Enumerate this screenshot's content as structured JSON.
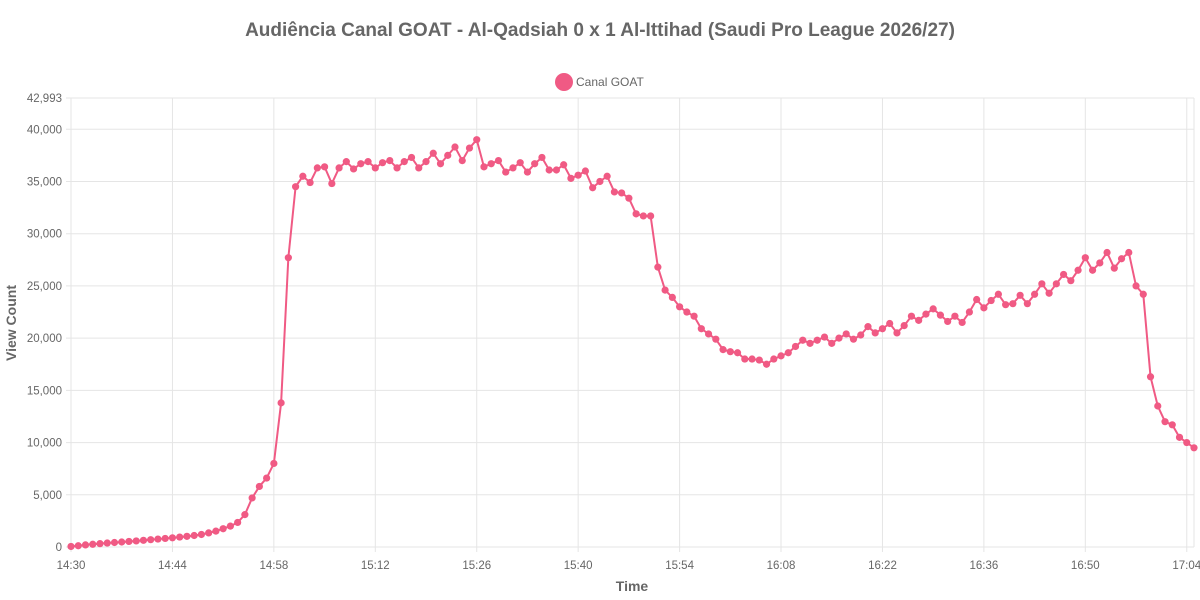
{
  "chart_data": {
    "type": "line",
    "title": "Audiência Canal GOAT - Al-Qadsiah 0 x 1 Al-Ittihad (Saudi Pro League 2026/27)",
    "xlabel": "Time",
    "ylabel": "View Count",
    "ylim": [
      0,
      42993
    ],
    "y_ticks": [
      "0",
      "5,000",
      "10,000",
      "15,000",
      "20,000",
      "25,000",
      "30,000",
      "35,000",
      "40,000",
      "42,993"
    ],
    "x_ticks": [
      "14:30",
      "14:44",
      "14:58",
      "15:12",
      "15:26",
      "15:40",
      "15:54",
      "16:08",
      "16:22",
      "16:36",
      "16:50",
      "17:04"
    ],
    "x_start": "14:30",
    "x_end": "17:05",
    "grid": true,
    "legend_position": "top-center",
    "series": [
      {
        "name": "Canal GOAT",
        "color": "#f05a84",
        "x": [
          "14:30",
          "14:31",
          "14:32",
          "14:33",
          "14:34",
          "14:35",
          "14:36",
          "14:37",
          "14:38",
          "14:39",
          "14:40",
          "14:41",
          "14:42",
          "14:43",
          "14:44",
          "14:45",
          "14:46",
          "14:47",
          "14:48",
          "14:49",
          "14:50",
          "14:51",
          "14:52",
          "14:53",
          "14:54",
          "14:55",
          "14:56",
          "14:57",
          "14:58",
          "14:59",
          "15:00",
          "15:01",
          "15:02",
          "15:03",
          "15:04",
          "15:05",
          "15:06",
          "15:07",
          "15:08",
          "15:09",
          "15:10",
          "15:11",
          "15:12",
          "15:13",
          "15:14",
          "15:15",
          "15:16",
          "15:17",
          "15:18",
          "15:19",
          "15:20",
          "15:21",
          "15:22",
          "15:23",
          "15:24",
          "15:25",
          "15:26",
          "15:27",
          "15:28",
          "15:29",
          "15:30",
          "15:31",
          "15:32",
          "15:33",
          "15:34",
          "15:35",
          "15:36",
          "15:37",
          "15:38",
          "15:39",
          "15:40",
          "15:41",
          "15:42",
          "15:43",
          "15:44",
          "15:45",
          "15:46",
          "15:47",
          "15:48",
          "15:49",
          "15:50",
          "15:51",
          "15:52",
          "15:53",
          "15:54",
          "15:55",
          "15:56",
          "15:57",
          "15:58",
          "15:59",
          "16:00",
          "16:01",
          "16:02",
          "16:03",
          "16:04",
          "16:05",
          "16:06",
          "16:07",
          "16:08",
          "16:09",
          "16:10",
          "16:11",
          "16:12",
          "16:13",
          "16:14",
          "16:15",
          "16:16",
          "16:17",
          "16:18",
          "16:19",
          "16:20",
          "16:21",
          "16:22",
          "16:23",
          "16:24",
          "16:25",
          "16:26",
          "16:27",
          "16:28",
          "16:29",
          "16:30",
          "16:31",
          "16:32",
          "16:33",
          "16:34",
          "16:35",
          "16:36",
          "16:37",
          "16:38",
          "16:39",
          "16:40",
          "16:41",
          "16:42",
          "16:43",
          "16:44",
          "16:45",
          "16:46",
          "16:47",
          "16:48",
          "16:49",
          "16:50",
          "16:51",
          "16:52",
          "16:53",
          "16:54",
          "16:55",
          "16:56",
          "16:57",
          "16:58",
          "16:59",
          "17:00",
          "17:01",
          "17:02",
          "17:03",
          "17:04",
          "17:05"
        ],
        "values": [
          50,
          120,
          200,
          260,
          320,
          380,
          430,
          480,
          530,
          580,
          640,
          700,
          760,
          820,
          880,
          950,
          1020,
          1100,
          1200,
          1350,
          1520,
          1750,
          2000,
          2350,
          3100,
          4700,
          5800,
          6600,
          8000,
          13800,
          27700,
          34500,
          35500,
          34900,
          36300,
          36400,
          34800,
          36300,
          36900,
          36200,
          36700,
          36900,
          36300,
          36800,
          37000,
          36300,
          36900,
          37300,
          36300,
          36900,
          37700,
          36700,
          37500,
          38300,
          37000,
          38200,
          39000,
          36400,
          36700,
          37000,
          35900,
          36300,
          36800,
          35900,
          36700,
          37300,
          36100,
          36100,
          36600,
          35300,
          35600,
          36000,
          34400,
          35000,
          35500,
          34000,
          33900,
          33400,
          31900,
          31700,
          31700,
          26800,
          24600,
          23900,
          23000,
          22500,
          22100,
          20900,
          20400,
          19900,
          18900,
          18700,
          18600,
          18000,
          18000,
          17900,
          17500,
          18000,
          18300,
          18600,
          19200,
          19800,
          19500,
          19800,
          20100,
          19500,
          20000,
          20400,
          19900,
          20300,
          21100,
          20500,
          20900,
          21400,
          20500,
          21200,
          22100,
          21700,
          22300,
          22800,
          22200,
          21600,
          22100,
          21500,
          22500,
          23700,
          22900,
          23600,
          24200,
          23200,
          23300,
          24100,
          23300,
          24200,
          25200,
          24300,
          25200,
          26100,
          25500,
          26500,
          27700,
          26500,
          27200,
          28200,
          26700,
          27600,
          28200,
          25000,
          24200,
          16300,
          13500,
          12000,
          11700,
          10500,
          10000,
          9500
        ]
      }
    ]
  }
}
